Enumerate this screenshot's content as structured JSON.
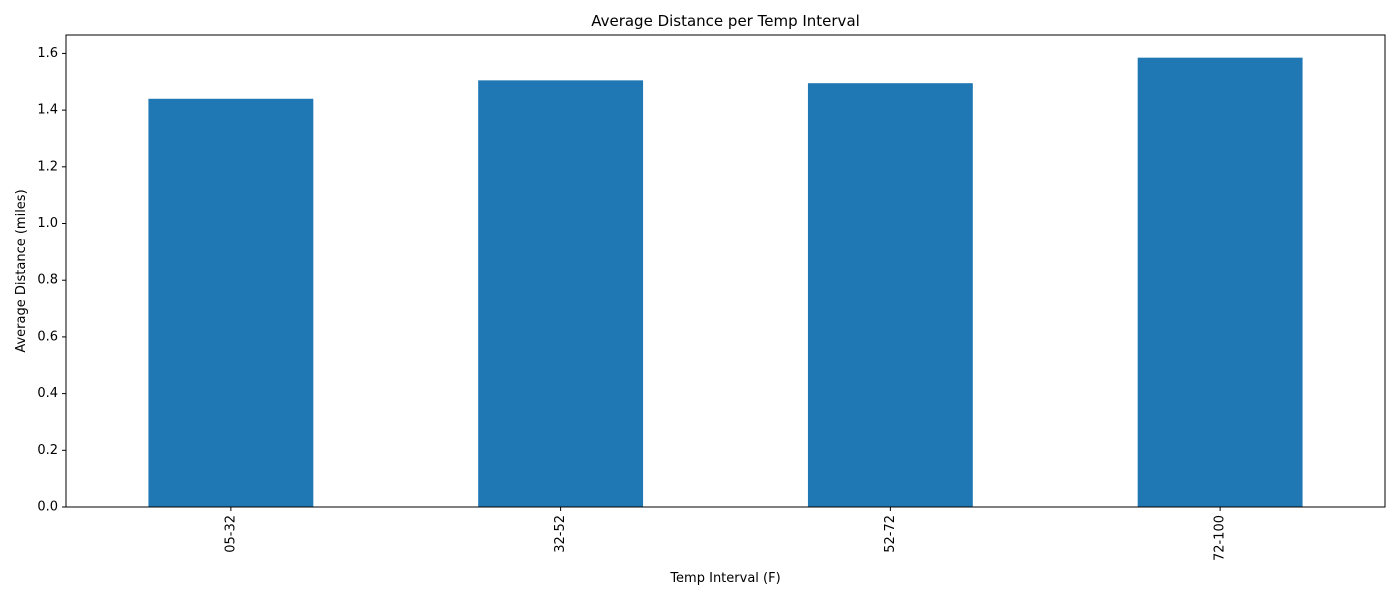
{
  "chart_data": {
    "type": "bar",
    "title": "Average Distance per Temp Interval",
    "xlabel": "Temp Interval (F)",
    "ylabel": "Average Distance (miles)",
    "categories": [
      "05-32",
      "32-52",
      "52-72",
      "72-100"
    ],
    "values": [
      1.44,
      1.505,
      1.495,
      1.585
    ],
    "ylim": [
      0,
      1.665
    ],
    "yticks": [
      0.0,
      0.2,
      0.4,
      0.6,
      0.8,
      1.0,
      1.2,
      1.4,
      1.6
    ],
    "ytick_labels": [
      "0.0",
      "0.2",
      "0.4",
      "0.6",
      "0.8",
      "1.0",
      "1.2",
      "1.4",
      "1.6"
    ],
    "x_tick_rotation": "vertical",
    "grid": false,
    "legend": false,
    "bar_color": "#1f77b4"
  }
}
